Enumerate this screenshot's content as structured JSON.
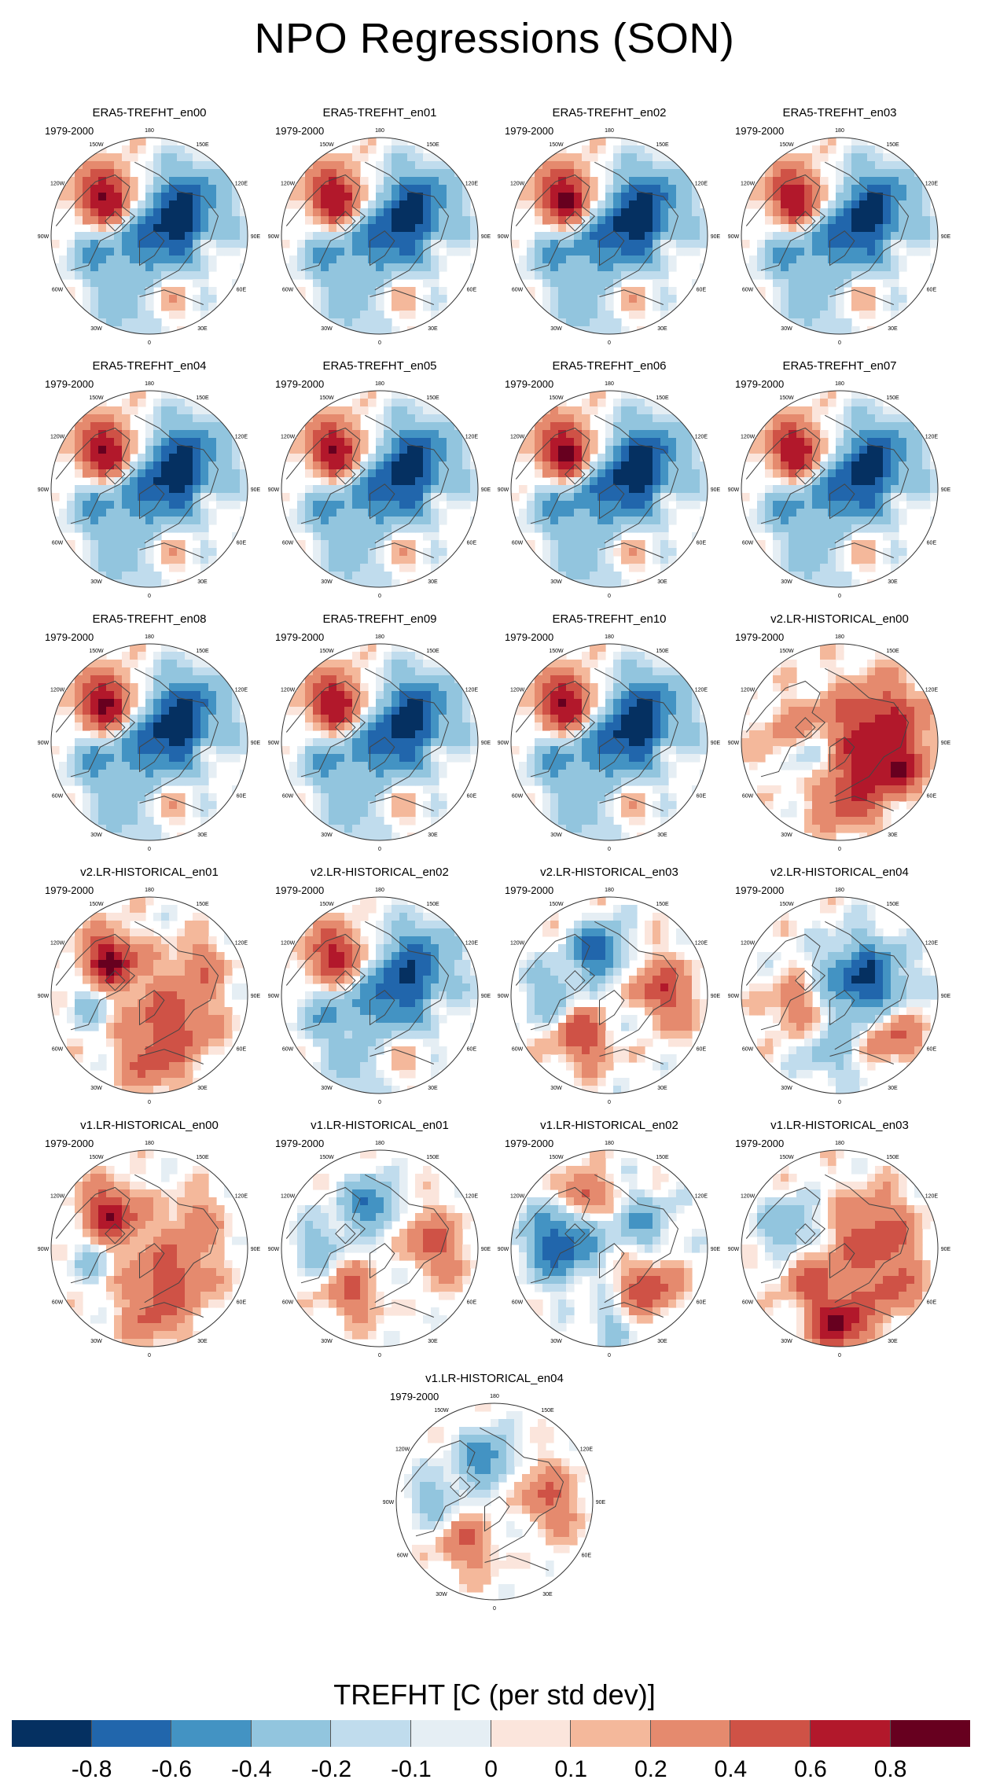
{
  "figure_title": "NPO Regressions (SON)",
  "chart_data": {
    "type": "heatmap",
    "projection": "north polar stereographic",
    "variable_label": "TREFHT [C (per std dev)]",
    "period": "1979-2000",
    "longitude_labels": [
      "180",
      "150E",
      "120E",
      "90E",
      "60E",
      "30E",
      "0",
      "30W",
      "60W",
      "90W",
      "120W",
      "150W"
    ],
    "panels": [
      {
        "title": "ERA5-TREFHT_en00",
        "pattern": "era5",
        "v": 1.0
      },
      {
        "title": "ERA5-TREFHT_en01",
        "pattern": "era5",
        "v": 0.97
      },
      {
        "title": "ERA5-TREFHT_en02",
        "pattern": "era5",
        "v": 1.02
      },
      {
        "title": "ERA5-TREFHT_en03",
        "pattern": "era5",
        "v": 0.95
      },
      {
        "title": "ERA5-TREFHT_en04",
        "pattern": "era5",
        "v": 1.0
      },
      {
        "title": "ERA5-TREFHT_en05",
        "pattern": "era5",
        "v": 0.98
      },
      {
        "title": "ERA5-TREFHT_en06",
        "pattern": "era5",
        "v": 1.03
      },
      {
        "title": "ERA5-TREFHT_en07",
        "pattern": "era5",
        "v": 0.96
      },
      {
        "title": "ERA5-TREFHT_en08",
        "pattern": "era5",
        "v": 1.01
      },
      {
        "title": "ERA5-TREFHT_en09",
        "pattern": "era5",
        "v": 0.97
      },
      {
        "title": "ERA5-TREFHT_en10",
        "pattern": "era5",
        "v": 1.0
      },
      {
        "title": "v2.LR-HISTORICAL_en00",
        "pattern": "warm_asia",
        "v": 1.0
      },
      {
        "title": "v2.LR-HISTORICAL_en01",
        "pattern": "warm_mixed",
        "v": 1.0
      },
      {
        "title": "v2.LR-HISTORICAL_en02",
        "pattern": "era5",
        "v": 0.85
      },
      {
        "title": "v2.LR-HISTORICAL_en03",
        "pattern": "cold_pac",
        "v": 1.0
      },
      {
        "title": "v2.LR-HISTORICAL_en04",
        "pattern": "cold_asia",
        "v": 1.0
      },
      {
        "title": "v1.LR-HISTORICAL_en00",
        "pattern": "warm_mixed",
        "v": 0.9
      },
      {
        "title": "v1.LR-HISTORICAL_en01",
        "pattern": "cold_pac",
        "v": 0.8
      },
      {
        "title": "v1.LR-HISTORICAL_en02",
        "pattern": "cold_na",
        "v": 1.0
      },
      {
        "title": "v1.LR-HISTORICAL_en03",
        "pattern": "warm_atl",
        "v": 1.0
      },
      {
        "title": "v1.LR-HISTORICAL_en04",
        "pattern": "cold_pac",
        "v": 0.75
      }
    ],
    "colorbar": {
      "colors": [
        "#053061",
        "#2166ac",
        "#4393c3",
        "#92c5de",
        "#c0dced",
        "#e5eef4",
        "#fbe5dc",
        "#f4b89b",
        "#e58a6e",
        "#cf5246",
        "#b2182b",
        "#67001f"
      ],
      "tick_labels": [
        "-0.8",
        "-0.6",
        "-0.4",
        "-0.2",
        "-0.1",
        "0",
        "0.1",
        "0.2",
        "0.4",
        "0.6",
        "0.8"
      ]
    }
  }
}
